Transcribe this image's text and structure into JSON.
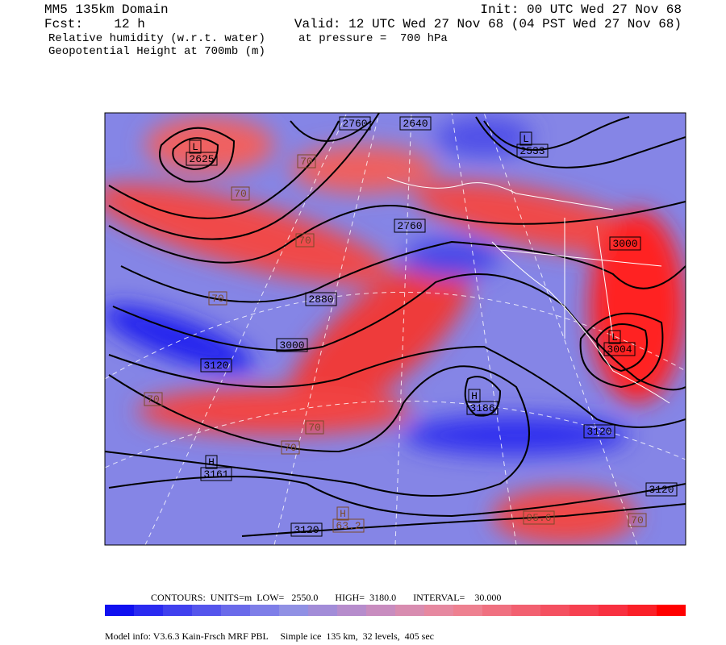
{
  "header": {
    "domain": "MM5 135km Domain",
    "init": "Init: 00 UTC Wed 27 Nov 68",
    "fcst": "Fcst:    12 h",
    "valid": "Valid: 12 UTC Wed 27 Nov 68 (04 PST Wed 27 Nov 68)",
    "field1": "Relative humidity (w.r.t. water)",
    "pressure": "at pressure =  700 hPa",
    "field2": "Geopotential Height at 700mb (m)"
  },
  "height_labels": [
    "2760",
    "2640",
    "L",
    "2625",
    "L",
    "2533",
    "2760",
    "3000",
    "2880",
    "3000",
    "3120",
    "H",
    "3186",
    "3120",
    "H",
    "3161",
    "3120",
    "3120",
    "L",
    "3004"
  ],
  "rh_labels": [
    "70",
    "70",
    "70",
    "70",
    "70",
    "70",
    "70",
    "70",
    "H",
    "63.2",
    "95.6"
  ],
  "contour_info": "CONTOURS:  UNITS=m  LOW=   2550.0       HIGH=  3180.0       INTERVAL=    30.000",
  "footer": "Model info: V3.6.3 Kain-Frsch MRF PBL     Simple ice  135 km,  32 levels,  405 sec"
}
